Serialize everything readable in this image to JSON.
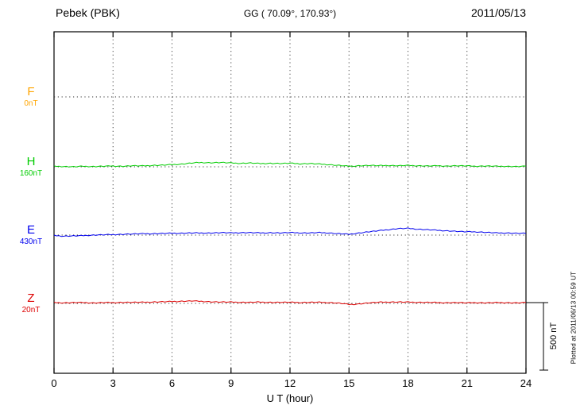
{
  "header": {
    "station": "Pebek (PBK)",
    "coords": "GG ( 70.09°, 170.93°)",
    "date": "2011/05/13"
  },
  "footer_note": "Plotted at 2011/06/13 00:59 UT",
  "scale_bar": {
    "label": "500 nT",
    "nT": 500
  },
  "chart_data": {
    "type": "line",
    "title": "Pebek (PBK) magnetogram 2011/05/13",
    "xlabel": "U T (hour)",
    "xlim": [
      0,
      24
    ],
    "x_ticks": [
      0,
      3,
      6,
      9,
      12,
      15,
      18,
      21,
      24
    ],
    "x_start_hour": 0,
    "sample_interval_hours": 0.5,
    "grid": "dotted vertical at each 3h tick, dotted horizontal baseline per channel",
    "legend_position": "left",
    "scale_bar_nT": 500,
    "series": [
      {
        "name": "F",
        "color": "#FFA500",
        "baseline_nT": 0,
        "baseline_label": "0nT",
        "baseline_y": 122,
        "values": null
      },
      {
        "name": "H",
        "color": "#00CC00",
        "baseline_nT": 160,
        "baseline_label": "160nT",
        "baseline_y": 210,
        "values": [
          164,
          162,
          160,
          164,
          162,
          164,
          166,
          164,
          168,
          166,
          170,
          172,
          176,
          180,
          188,
          192,
          190,
          192,
          188,
          186,
          188,
          184,
          186,
          184,
          186,
          182,
          184,
          180,
          176,
          170,
          164,
          168,
          170,
          168,
          170,
          168,
          170,
          168,
          166,
          168,
          166,
          168,
          166,
          164,
          166,
          164,
          164,
          162,
          164
        ]
      },
      {
        "name": "E",
        "color": "#0000EE",
        "baseline_nT": 430,
        "baseline_label": "430nT",
        "baseline_y": 296,
        "values": [
          426,
          422,
          424,
          426,
          430,
          432,
          434,
          436,
          438,
          440,
          440,
          442,
          444,
          444,
          446,
          446,
          446,
          448,
          446,
          448,
          448,
          446,
          448,
          446,
          448,
          446,
          446,
          448,
          446,
          440,
          436,
          446,
          454,
          462,
          470,
          478,
          480,
          474,
          470,
          466,
          462,
          458,
          454,
          454,
          450,
          446,
          446,
          444,
          442
        ]
      },
      {
        "name": "Z",
        "color": "#DD0000",
        "baseline_nT": 20,
        "baseline_label": "20nT",
        "baseline_y": 382,
        "values": [
          26,
          24,
          26,
          26,
          24,
          26,
          26,
          28,
          28,
          28,
          30,
          32,
          34,
          36,
          38,
          36,
          32,
          30,
          30,
          28,
          28,
          30,
          28,
          28,
          28,
          26,
          28,
          28,
          26,
          22,
          12,
          16,
          24,
          28,
          30,
          30,
          30,
          28,
          28,
          26,
          26,
          26,
          24,
          26,
          24,
          26,
          26,
          24,
          26
        ]
      }
    ]
  }
}
